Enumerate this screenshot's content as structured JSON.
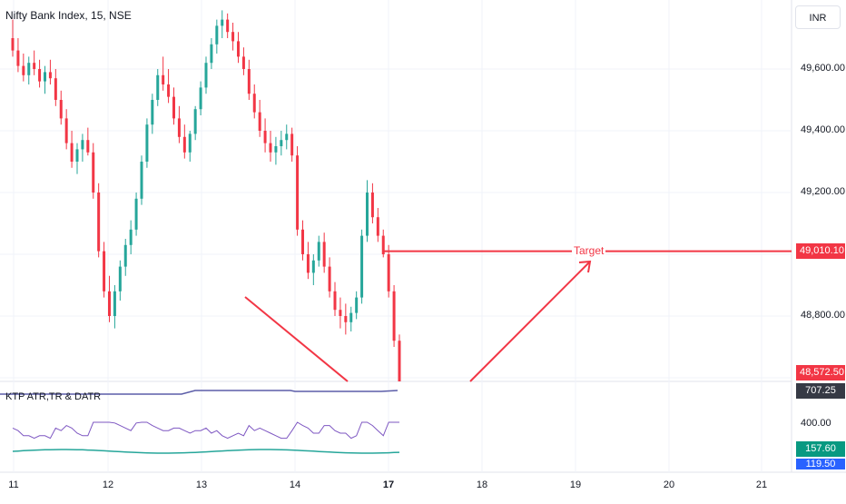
{
  "header": {
    "title": "Nifty Bank Index, 15, NSE"
  },
  "axis": {
    "currency": "INR",
    "price_ticks": [
      {
        "value": 49600,
        "label": "49,600.00"
      },
      {
        "value": 49400,
        "label": "49,400.00"
      },
      {
        "value": 49200,
        "label": "49,200.00"
      },
      {
        "value": 48800,
        "label": "48,800.00"
      }
    ],
    "indicator_tick": "400.00"
  },
  "badges": {
    "target_price": "49,010.10",
    "last_price": "48,572.50",
    "atr": "707.25",
    "val_green": "157.60",
    "val_blue": "119.50"
  },
  "annotation": {
    "target_label": "Target"
  },
  "indicator": {
    "title": "KTP ATR,TR & DATR"
  },
  "x_axis": {
    "labels": [
      {
        "text": "11",
        "bold": false
      },
      {
        "text": "12",
        "bold": false
      },
      {
        "text": "13",
        "bold": false
      },
      {
        "text": "14",
        "bold": false
      },
      {
        "text": "17",
        "bold": true
      },
      {
        "text": "18",
        "bold": false
      },
      {
        "text": "19",
        "bold": false
      },
      {
        "text": "20",
        "bold": false
      },
      {
        "text": "21",
        "bold": false
      }
    ]
  },
  "colors": {
    "up": "#26a69a",
    "down": "#f23645",
    "grid": "#f0f3fa",
    "indicator_purple": "#7e57c2",
    "indicator_teal": "#26a69a",
    "datr_line": "#5b5da8",
    "atr_badge": "#363a45",
    "val_green_badge": "#089981",
    "val_blue_badge": "#2962ff"
  },
  "chart_data": {
    "type": "candlestick",
    "title": "Nifty Bank Index, 15, NSE",
    "timeframe_minutes": 15,
    "y_axis": {
      "min": 48540,
      "max": 49780
    },
    "x_dates": [
      "11",
      "12",
      "13",
      "14",
      "17",
      "18",
      "19",
      "20",
      "21"
    ],
    "target_level": 49010.1,
    "last_price": 48572.5,
    "candles_ohlc_approx": [
      [
        49700,
        49760,
        49640,
        49660
      ],
      [
        49660,
        49700,
        49590,
        49610
      ],
      [
        49610,
        49650,
        49560,
        49580
      ],
      [
        49580,
        49640,
        49550,
        49620
      ],
      [
        49620,
        49660,
        49580,
        49600
      ],
      [
        49600,
        49630,
        49540,
        49560
      ],
      [
        49560,
        49610,
        49520,
        49590
      ],
      [
        49590,
        49630,
        49550,
        49570
      ],
      [
        49570,
        49600,
        49480,
        49500
      ],
      [
        49500,
        49530,
        49420,
        49440
      ],
      [
        49440,
        49470,
        49340,
        49360
      ],
      [
        49360,
        49400,
        49280,
        49300
      ],
      [
        49300,
        49360,
        49260,
        49340
      ],
      [
        49340,
        49390,
        49300,
        49370
      ],
      [
        49370,
        49410,
        49320,
        49330
      ],
      [
        49330,
        49360,
        49180,
        49200
      ],
      [
        49200,
        49230,
        48990,
        49010
      ],
      [
        49010,
        49040,
        48860,
        48880
      ],
      [
        48880,
        48930,
        48780,
        48800
      ],
      [
        48800,
        48900,
        48760,
        48880
      ],
      [
        48880,
        48980,
        48850,
        48960
      ],
      [
        48960,
        49050,
        48930,
        49030
      ],
      [
        49030,
        49110,
        49000,
        49080
      ],
      [
        49080,
        49200,
        49060,
        49180
      ],
      [
        49180,
        49320,
        49160,
        49300
      ],
      [
        49300,
        49440,
        49280,
        49420
      ],
      [
        49420,
        49520,
        49390,
        49500
      ],
      [
        49500,
        49600,
        49480,
        49580
      ],
      [
        49580,
        49640,
        49530,
        49550
      ],
      [
        49550,
        49600,
        49490,
        49510
      ],
      [
        49510,
        49540,
        49420,
        49440
      ],
      [
        49440,
        49480,
        49360,
        49380
      ],
      [
        49380,
        49420,
        49310,
        49330
      ],
      [
        49330,
        49400,
        49300,
        49390
      ],
      [
        49390,
        49480,
        49370,
        49470
      ],
      [
        49470,
        49560,
        49450,
        49540
      ],
      [
        49540,
        49640,
        49520,
        49620
      ],
      [
        49620,
        49700,
        49600,
        49680
      ],
      [
        49680,
        49760,
        49650,
        49740
      ],
      [
        49740,
        49790,
        49700,
        49760
      ],
      [
        49760,
        49780,
        49700,
        49720
      ],
      [
        49720,
        49750,
        49660,
        49690
      ],
      [
        49690,
        49720,
        49620,
        49640
      ],
      [
        49640,
        49670,
        49580,
        49600
      ],
      [
        49600,
        49630,
        49500,
        49520
      ],
      [
        49520,
        49550,
        49440,
        49460
      ],
      [
        49460,
        49500,
        49380,
        49400
      ],
      [
        49400,
        49440,
        49330,
        49360
      ],
      [
        49360,
        49400,
        49300,
        49330
      ],
      [
        49330,
        49380,
        49290,
        49350
      ],
      [
        49350,
        49400,
        49320,
        49370
      ],
      [
        49370,
        49420,
        49340,
        49390
      ],
      [
        49390,
        49410,
        49300,
        49320
      ],
      [
        49320,
        49350,
        49060,
        49080
      ],
      [
        49080,
        49110,
        48980,
        49000
      ],
      [
        49000,
        49040,
        48920,
        48940
      ],
      [
        48940,
        49000,
        48900,
        48980
      ],
      [
        48980,
        49060,
        48960,
        49040
      ],
      [
        49040,
        49070,
        48940,
        48960
      ],
      [
        48960,
        48990,
        48860,
        48880
      ],
      [
        48880,
        48910,
        48800,
        48820
      ],
      [
        48820,
        48860,
        48760,
        48800
      ],
      [
        48800,
        48840,
        48740,
        48780
      ],
      [
        48780,
        48830,
        48750,
        48810
      ],
      [
        48810,
        48880,
        48790,
        48860
      ],
      [
        48860,
        49080,
        48840,
        49060
      ],
      [
        49060,
        49240,
        49040,
        49200
      ],
      [
        49200,
        49230,
        49100,
        49120
      ],
      [
        49120,
        49150,
        49040,
        49060
      ],
      [
        49060,
        49080,
        48990,
        49000
      ],
      [
        49000,
        49030,
        48860,
        48880
      ],
      [
        48880,
        48900,
        48700,
        48720
      ],
      [
        48720,
        48740,
        48560,
        48572.5
      ]
    ]
  }
}
